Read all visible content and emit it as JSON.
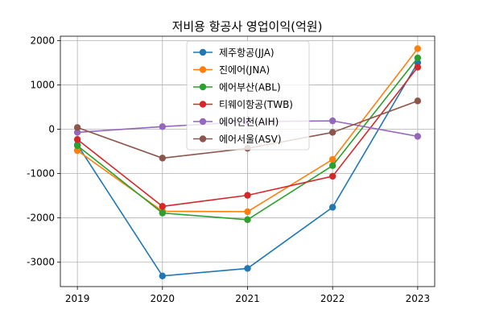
{
  "chart_data": {
    "type": "line",
    "title": "저비용 항공사 영업이익(억원)",
    "xlabel": "",
    "ylabel": "",
    "x": [
      2019,
      2020,
      2021,
      2022,
      2023
    ],
    "x_tick_labels": [
      "2019",
      "2020",
      "2021",
      "2022",
      "2023"
    ],
    "xlim": [
      2018.8,
      2023.2
    ],
    "ylim": [
      -3550,
      2100
    ],
    "y_ticks": [
      -3000,
      -2000,
      -1000,
      0,
      1000,
      2000
    ],
    "y_tick_labels": [
      "-3000",
      "-2000",
      "-1000",
      "0",
      "1000",
      "2000"
    ],
    "grid": true,
    "legend_position": "upper center",
    "series": [
      {
        "name": "제주항공(JJA)",
        "color": "#1f77b4",
        "values": [
          -350,
          -3310,
          -3140,
          -1760,
          1500
        ]
      },
      {
        "name": "진에어(JNA)",
        "color": "#ff7f0e",
        "values": [
          -480,
          -1850,
          -1860,
          -680,
          1820
        ]
      },
      {
        "name": "에어부산(ABL)",
        "color": "#2ca02c",
        "values": [
          -370,
          -1890,
          -2040,
          -820,
          1610
        ]
      },
      {
        "name": "티웨이항공(TWB)",
        "color": "#d62728",
        "values": [
          -230,
          -1740,
          -1490,
          -1060,
          1400
        ]
      },
      {
        "name": "에어인천(AIH)",
        "color": "#9467bd",
        "values": [
          -70,
          60,
          170,
          190,
          -160
        ]
      },
      {
        "name": "에어서울(ASV)",
        "color": "#8c564b",
        "values": [
          40,
          -650,
          -430,
          -70,
          640
        ]
      }
    ]
  }
}
